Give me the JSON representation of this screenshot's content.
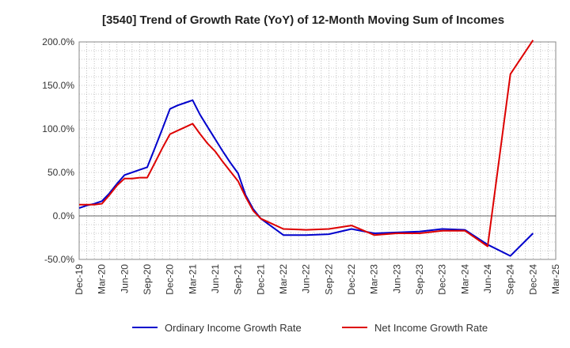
{
  "chart_data": {
    "type": "line",
    "title": "[3540]  Trend of Growth Rate (YoY) of 12-Month Moving Sum of Incomes",
    "xlabel": "",
    "ylabel": "",
    "x_ticks": [
      "Dec-19",
      "Mar-20",
      "Jun-20",
      "Sep-20",
      "Dec-20",
      "Mar-21",
      "Jun-21",
      "Sep-21",
      "Dec-21",
      "Mar-22",
      "Jun-22",
      "Sep-22",
      "Dec-22",
      "Mar-23",
      "Jun-23",
      "Sep-23",
      "Dec-23",
      "Mar-24",
      "Jun-24",
      "Sep-24",
      "Dec-24",
      "Mar-25"
    ],
    "y_ticks": [
      "-50.0%",
      "0.0%",
      "50.0%",
      "100.0%",
      "150.0%",
      "200.0%"
    ],
    "ylim": [
      -50,
      200
    ],
    "grid": true,
    "legend_position": "bottom",
    "series": [
      {
        "name": "Ordinary Income Growth Rate",
        "color": "#0000cc",
        "x": [
          "Dec-19",
          "Jan-20",
          "Feb-20",
          "Mar-20",
          "Apr-20",
          "May-20",
          "Jun-20",
          "Jul-20",
          "Aug-20",
          "Sep-20",
          "Oct-20",
          "Nov-20",
          "Dec-20",
          "Jan-21",
          "Feb-21",
          "Mar-21",
          "Apr-21",
          "May-21",
          "Jun-21",
          "Jul-21",
          "Aug-21",
          "Sep-21",
          "Oct-21",
          "Nov-21",
          "Dec-21",
          "Mar-22",
          "Jun-22",
          "Sep-22",
          "Dec-22",
          "Mar-23",
          "Jun-23",
          "Sep-23",
          "Dec-23",
          "Mar-24",
          "Jun-24",
          "Sep-24",
          "Dec-24"
        ],
        "values": [
          9,
          12,
          14,
          17,
          26,
          37,
          47,
          50,
          53,
          56,
          78,
          100,
          123,
          127,
          130,
          133,
          116,
          102,
          88,
          74,
          61,
          49,
          24,
          8,
          -3,
          -22,
          -22,
          -21,
          -15,
          -20,
          -19,
          -18,
          -15,
          -16,
          -33,
          -46,
          -20
        ]
      },
      {
        "name": "Net Income Growth Rate",
        "color": "#dd0000",
        "x": [
          "Dec-19",
          "Jan-20",
          "Feb-20",
          "Mar-20",
          "Apr-20",
          "May-20",
          "Jun-20",
          "Jul-20",
          "Aug-20",
          "Sep-20",
          "Oct-20",
          "Nov-20",
          "Dec-20",
          "Jan-21",
          "Feb-21",
          "Mar-21",
          "Apr-21",
          "May-21",
          "Jun-21",
          "Jul-21",
          "Aug-21",
          "Sep-21",
          "Oct-21",
          "Nov-21",
          "Dec-21",
          "Mar-22",
          "Jun-22",
          "Sep-22",
          "Dec-22",
          "Mar-23",
          "Jun-23",
          "Sep-23",
          "Dec-23",
          "Mar-24",
          "Jun-24",
          "Sep-24",
          "Dec-24"
        ],
        "values": [
          13,
          13,
          13,
          14,
          24,
          35,
          43,
          43,
          44,
          44,
          61,
          78,
          94,
          98,
          102,
          106,
          94,
          83,
          74,
          62,
          51,
          40,
          22,
          6,
          -3,
          -15,
          -16,
          -15,
          -11,
          -22,
          -20,
          -20,
          -17,
          -17,
          -35,
          163,
          202
        ]
      }
    ]
  }
}
